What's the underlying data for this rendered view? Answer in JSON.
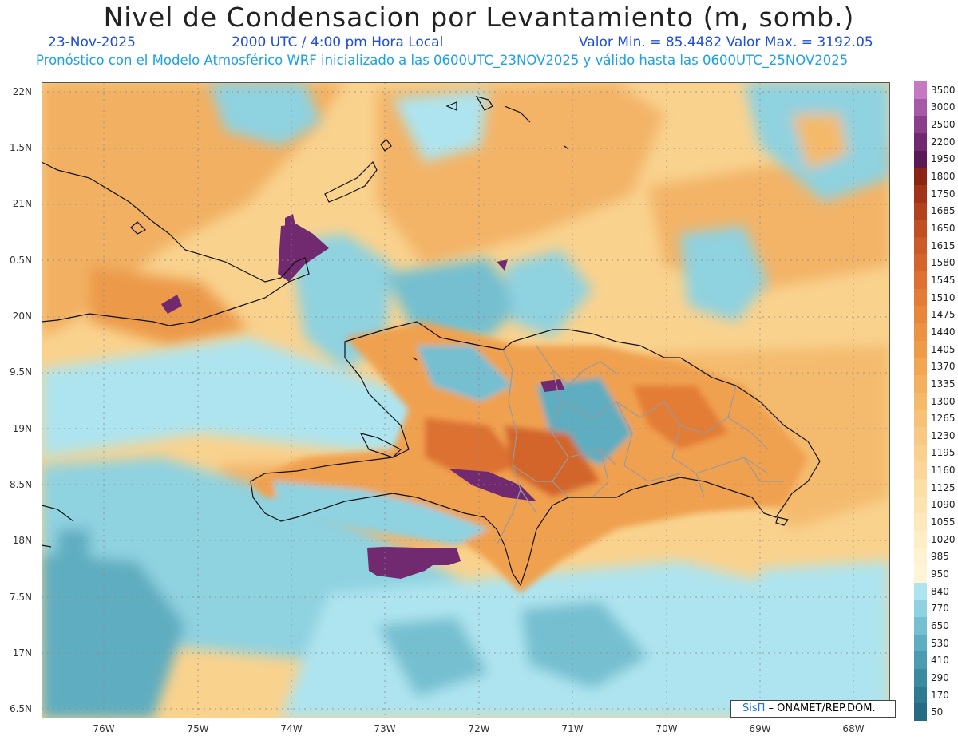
{
  "header": {
    "title": "Nivel de Condensacion por Levantamiento (m, somb.)",
    "date": "23-Nov-2025",
    "time": "2000 UTC / 4:00 pm Hora Local",
    "minmax": "Valor Min. = 85.4482   Valor Max. = 3192.05",
    "forecast": "Pronóstico con el Modelo Atmosférico WRF inicializado a las 0600UTC_23NOV2025 y válido hasta las  0600UTC_25NOV2025"
  },
  "axes": {
    "lat_labels": [
      "22N",
      "1.5N",
      "21N",
      "0.5N",
      "20N",
      "9.5N",
      "19N",
      "8.5N",
      "18N",
      "7.5N",
      "17N",
      "6.5N"
    ],
    "lon_labels": [
      "76W",
      "75W",
      "74W",
      "73W",
      "72W",
      "71W",
      "70W",
      "69W",
      "68W"
    ]
  },
  "colorbar": {
    "labels": [
      "3500",
      "3000",
      "2500",
      "2200",
      "1950",
      "1800",
      "1750",
      "1685",
      "1650",
      "1615",
      "1580",
      "1545",
      "1510",
      "1475",
      "1440",
      "1405",
      "1370",
      "1335",
      "1300",
      "1265",
      "1230",
      "1195",
      "1160",
      "1125",
      "1090",
      "1055",
      "1020",
      "985",
      "950",
      "840",
      "770",
      "650",
      "530",
      "410",
      "290",
      "170",
      "50"
    ],
    "colors": [
      "#c778c2",
      "#a65aa6",
      "#8a3f8a",
      "#71296f",
      "#5a1a55",
      "#8b2412",
      "#a13318",
      "#b2421d",
      "#c04f22",
      "#ca5a27",
      "#d3652c",
      "#dc7131",
      "#e37c36",
      "#e8873c",
      "#ec9243",
      "#ef9c4a",
      "#f2a654",
      "#f4b05f",
      "#f5b96a",
      "#f7c176",
      "#f8c982",
      "#f9d08d",
      "#fad798",
      "#fbdea4",
      "#fce4b0",
      "#fde9bb",
      "#fdeec6",
      "#fef2d0",
      "#fef5d6",
      "#aee4ef",
      "#8fd2e0",
      "#74bfd0",
      "#5fadc0",
      "#4c9bb0",
      "#3c8aa0",
      "#2e7a90",
      "#256c82"
    ]
  },
  "credit": {
    "sis": "SisΠ",
    "rest": " – ONAMET/REP.DOM."
  }
}
